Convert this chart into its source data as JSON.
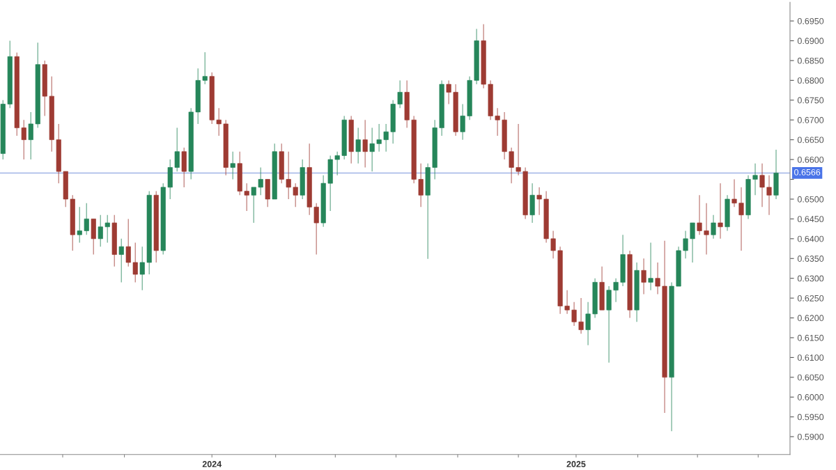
{
  "chart_data": {
    "type": "candlestick",
    "x": [
      "2023-06-05",
      "2023-06-12",
      "2023-06-19",
      "2023-06-26",
      "2023-07-03",
      "2023-07-10",
      "2023-07-17",
      "2023-07-24",
      "2023-07-31",
      "2023-08-07",
      "2023-08-14",
      "2023-08-21",
      "2023-08-28",
      "2023-09-04",
      "2023-09-11",
      "2023-09-18",
      "2023-09-25",
      "2023-10-02",
      "2023-10-09",
      "2023-10-16",
      "2023-10-23",
      "2023-10-30",
      "2023-11-06",
      "2023-11-13",
      "2023-11-20",
      "2023-11-27",
      "2023-12-04",
      "2023-12-11",
      "2023-12-18",
      "2023-12-25",
      "2024-01-01",
      "2024-01-08",
      "2024-01-15",
      "2024-01-22",
      "2024-01-29",
      "2024-02-05",
      "2024-02-12",
      "2024-02-19",
      "2024-02-26",
      "2024-03-04",
      "2024-03-11",
      "2024-03-18",
      "2024-03-25",
      "2024-04-01",
      "2024-04-08",
      "2024-04-15",
      "2024-04-22",
      "2024-04-29",
      "2024-05-06",
      "2024-05-13",
      "2024-05-20",
      "2024-05-27",
      "2024-06-03",
      "2024-06-10",
      "2024-06-17",
      "2024-06-24",
      "2024-07-01",
      "2024-07-08",
      "2024-07-15",
      "2024-07-22",
      "2024-07-29",
      "2024-08-05",
      "2024-08-12",
      "2024-08-19",
      "2024-08-26",
      "2024-09-02",
      "2024-09-09",
      "2024-09-16",
      "2024-09-23",
      "2024-09-30",
      "2024-10-07",
      "2024-10-14",
      "2024-10-21",
      "2024-10-28",
      "2024-11-04",
      "2024-11-11",
      "2024-11-18",
      "2024-11-25",
      "2024-12-02",
      "2024-12-09",
      "2024-12-16",
      "2024-12-23",
      "2024-12-30",
      "2025-01-06",
      "2025-01-13",
      "2025-01-20",
      "2025-01-27",
      "2025-02-03",
      "2025-02-10",
      "2025-02-17",
      "2025-02-24",
      "2025-03-03",
      "2025-03-10",
      "2025-03-17",
      "2025-03-24",
      "2025-03-31",
      "2025-04-07",
      "2025-04-14",
      "2025-04-21",
      "2025-04-28",
      "2025-05-05",
      "2025-05-12",
      "2025-05-19",
      "2025-05-26",
      "2025-06-02",
      "2025-06-09",
      "2025-06-16",
      "2025-06-23",
      "2025-06-30",
      "2025-07-07",
      "2025-07-14",
      "2025-07-21"
    ],
    "ohlc": [
      [
        0.6615,
        0.675,
        0.66,
        0.674
      ],
      [
        0.674,
        0.69,
        0.673,
        0.686
      ],
      [
        0.686,
        0.687,
        0.666,
        0.668
      ],
      [
        0.668,
        0.67,
        0.66,
        0.665
      ],
      [
        0.665,
        0.672,
        0.66,
        0.669
      ],
      [
        0.669,
        0.6895,
        0.668,
        0.684
      ],
      [
        0.684,
        0.685,
        0.671,
        0.676
      ],
      [
        0.676,
        0.681,
        0.662,
        0.665
      ],
      [
        0.665,
        0.669,
        0.654,
        0.657
      ],
      [
        0.657,
        0.657,
        0.648,
        0.65
      ],
      [
        0.65,
        0.651,
        0.637,
        0.641
      ],
      [
        0.641,
        0.648,
        0.639,
        0.642
      ],
      [
        0.642,
        0.649,
        0.641,
        0.645
      ],
      [
        0.645,
        0.645,
        0.636,
        0.64
      ],
      [
        0.64,
        0.646,
        0.638,
        0.643
      ],
      [
        0.643,
        0.646,
        0.639,
        0.644
      ],
      [
        0.644,
        0.646,
        0.633,
        0.636
      ],
      [
        0.636,
        0.64,
        0.629,
        0.638
      ],
      [
        0.638,
        0.645,
        0.633,
        0.634
      ],
      [
        0.634,
        0.639,
        0.629,
        0.631
      ],
      [
        0.631,
        0.638,
        0.627,
        0.634
      ],
      [
        0.634,
        0.652,
        0.631,
        0.651
      ],
      [
        0.651,
        0.652,
        0.634,
        0.637
      ],
      [
        0.637,
        0.654,
        0.636,
        0.653
      ],
      [
        0.653,
        0.66,
        0.65,
        0.658
      ],
      [
        0.658,
        0.668,
        0.657,
        0.662
      ],
      [
        0.662,
        0.663,
        0.653,
        0.657
      ],
      [
        0.657,
        0.673,
        0.655,
        0.672
      ],
      [
        0.672,
        0.683,
        0.669,
        0.68
      ],
      [
        0.68,
        0.6871,
        0.679,
        0.681
      ],
      [
        0.681,
        0.682,
        0.669,
        0.67
      ],
      [
        0.67,
        0.673,
        0.666,
        0.669
      ],
      [
        0.669,
        0.67,
        0.656,
        0.658
      ],
      [
        0.658,
        0.662,
        0.655,
        0.659
      ],
      [
        0.659,
        0.662,
        0.651,
        0.652
      ],
      [
        0.652,
        0.654,
        0.647,
        0.651
      ],
      [
        0.651,
        0.653,
        0.644,
        0.653
      ],
      [
        0.653,
        0.658,
        0.651,
        0.655
      ],
      [
        0.655,
        0.655,
        0.648,
        0.65
      ],
      [
        0.65,
        0.664,
        0.65,
        0.662
      ],
      [
        0.662,
        0.664,
        0.654,
        0.655
      ],
      [
        0.655,
        0.662,
        0.65,
        0.653
      ],
      [
        0.653,
        0.654,
        0.648,
        0.651
      ],
      [
        0.651,
        0.66,
        0.65,
        0.658
      ],
      [
        0.658,
        0.664,
        0.646,
        0.648
      ],
      [
        0.648,
        0.649,
        0.636,
        0.644
      ],
      [
        0.644,
        0.656,
        0.643,
        0.654
      ],
      [
        0.654,
        0.661,
        0.647,
        0.66
      ],
      [
        0.66,
        0.662,
        0.656,
        0.661
      ],
      [
        0.661,
        0.671,
        0.66,
        0.67
      ],
      [
        0.67,
        0.671,
        0.659,
        0.662
      ],
      [
        0.662,
        0.668,
        0.659,
        0.665
      ],
      [
        0.665,
        0.67,
        0.658,
        0.662
      ],
      [
        0.662,
        0.668,
        0.657,
        0.664
      ],
      [
        0.664,
        0.669,
        0.662,
        0.665
      ],
      [
        0.665,
        0.669,
        0.662,
        0.667
      ],
      [
        0.667,
        0.675,
        0.664,
        0.674
      ],
      [
        0.674,
        0.68,
        0.673,
        0.677
      ],
      [
        0.677,
        0.68,
        0.668,
        0.67
      ],
      [
        0.67,
        0.671,
        0.654,
        0.655
      ],
      [
        0.655,
        0.659,
        0.648,
        0.651
      ],
      [
        0.651,
        0.659,
        0.6349,
        0.658
      ],
      [
        0.658,
        0.67,
        0.655,
        0.668
      ],
      [
        0.668,
        0.68,
        0.666,
        0.679
      ],
      [
        0.679,
        0.68,
        0.674,
        0.677
      ],
      [
        0.677,
        0.679,
        0.666,
        0.667
      ],
      [
        0.667,
        0.674,
        0.665,
        0.671
      ],
      [
        0.671,
        0.681,
        0.67,
        0.68
      ],
      [
        0.68,
        0.693,
        0.679,
        0.69
      ],
      [
        0.69,
        0.6942,
        0.678,
        0.679
      ],
      [
        0.679,
        0.68,
        0.67,
        0.671
      ],
      [
        0.671,
        0.673,
        0.666,
        0.67
      ],
      [
        0.67,
        0.672,
        0.66,
        0.662
      ],
      [
        0.662,
        0.663,
        0.654,
        0.658
      ],
      [
        0.658,
        0.669,
        0.656,
        0.657
      ],
      [
        0.657,
        0.658,
        0.645,
        0.646
      ],
      [
        0.646,
        0.654,
        0.644,
        0.651
      ],
      [
        0.651,
        0.653,
        0.646,
        0.65
      ],
      [
        0.65,
        0.652,
        0.639,
        0.64
      ],
      [
        0.64,
        0.642,
        0.635,
        0.637
      ],
      [
        0.637,
        0.638,
        0.621,
        0.623
      ],
      [
        0.623,
        0.627,
        0.621,
        0.622
      ],
      [
        0.622,
        0.624,
        0.618,
        0.619
      ],
      [
        0.619,
        0.625,
        0.616,
        0.617
      ],
      [
        0.617,
        0.624,
        0.6131,
        0.621
      ],
      [
        0.621,
        0.63,
        0.62,
        0.629
      ],
      [
        0.629,
        0.633,
        0.622,
        0.622
      ],
      [
        0.622,
        0.628,
        0.6087,
        0.627
      ],
      [
        0.627,
        0.63,
        0.624,
        0.629
      ],
      [
        0.629,
        0.641,
        0.628,
        0.636
      ],
      [
        0.636,
        0.637,
        0.62,
        0.622
      ],
      [
        0.622,
        0.634,
        0.619,
        0.632
      ],
      [
        0.632,
        0.635,
        0.626,
        0.629
      ],
      [
        0.629,
        0.639,
        0.627,
        0.63
      ],
      [
        0.63,
        0.634,
        0.626,
        0.628
      ],
      [
        0.628,
        0.6395,
        0.596,
        0.605
      ],
      [
        0.605,
        0.629,
        0.5914,
        0.628
      ],
      [
        0.628,
        0.638,
        0.628,
        0.637
      ],
      [
        0.637,
        0.642,
        0.635,
        0.64
      ],
      [
        0.64,
        0.644,
        0.634,
        0.644
      ],
      [
        0.644,
        0.651,
        0.641,
        0.642
      ],
      [
        0.642,
        0.649,
        0.636,
        0.641
      ],
      [
        0.641,
        0.646,
        0.64,
        0.644
      ],
      [
        0.644,
        0.654,
        0.64,
        0.643
      ],
      [
        0.643,
        0.651,
        0.642,
        0.65
      ],
      [
        0.65,
        0.655,
        0.648,
        0.649
      ],
      [
        0.649,
        0.653,
        0.637,
        0.646
      ],
      [
        0.646,
        0.656,
        0.645,
        0.655
      ],
      [
        0.655,
        0.659,
        0.651,
        0.656
      ],
      [
        0.656,
        0.659,
        0.648,
        0.653
      ],
      [
        0.653,
        0.656,
        0.646,
        0.651
      ],
      [
        0.651,
        0.6625,
        0.65,
        0.6566
      ]
    ],
    "colors": [
      "#26865a",
      "#26865a",
      "#9e3b33",
      "#9e3b33",
      "#26865a",
      "#26865a",
      "#9e3b33",
      "#9e3b33",
      "#9e3b33",
      "#9e3b33",
      "#9e3b33",
      "#26865a",
      "#26865a",
      "#9e3b33",
      "#26865a",
      "#26865a",
      "#9e3b33",
      "#26865a",
      "#9e3b33",
      "#9e3b33",
      "#26865a",
      "#26865a",
      "#9e3b33",
      "#26865a",
      "#26865a",
      "#26865a",
      "#9e3b33",
      "#26865a",
      "#26865a",
      "#26865a",
      "#9e3b33",
      "#9e3b33",
      "#9e3b33",
      "#26865a",
      "#9e3b33",
      "#9e3b33",
      "#26865a",
      "#26865a",
      "#9e3b33",
      "#26865a",
      "#9e3b33",
      "#9e3b33",
      "#9e3b33",
      "#26865a",
      "#9e3b33",
      "#9e3b33",
      "#26865a",
      "#26865a",
      "#26865a",
      "#26865a",
      "#9e3b33",
      "#26865a",
      "#9e3b33",
      "#26865a",
      "#26865a",
      "#26865a",
      "#26865a",
      "#26865a",
      "#9e3b33",
      "#9e3b33",
      "#9e3b33",
      "#26865a",
      "#26865a",
      "#26865a",
      "#9e3b33",
      "#9e3b33",
      "#26865a",
      "#26865a",
      "#26865a",
      "#9e3b33",
      "#9e3b33",
      "#9e3b33",
      "#9e3b33",
      "#9e3b33",
      "#9e3b33",
      "#9e3b33",
      "#26865a",
      "#9e3b33",
      "#9e3b33",
      "#9e3b33",
      "#9e3b33",
      "#9e3b33",
      "#9e3b33",
      "#9e3b33",
      "#26865a",
      "#26865a",
      "#9e3b33",
      "#26865a",
      "#26865a",
      "#26865a",
      "#9e3b33",
      "#26865a",
      "#9e3b33",
      "#26865a",
      "#9e3b33",
      "#9e3b33",
      "#26865a",
      "#26865a",
      "#26865a",
      "#26865a",
      "#9e3b33",
      "#9e3b33",
      "#26865a",
      "#9e3b33",
      "#26865a",
      "#9e3b33",
      "#9e3b33",
      "#26865a",
      "#26865a",
      "#9e3b33",
      "#9e3b33",
      "#26865a"
    ],
    "xlim": [
      "2023-06-02",
      "2025-08-04"
    ],
    "xticks": [
      {
        "value": "2023-08-04",
        "label": null
      },
      {
        "value": "2023-10-05",
        "label": null
      },
      {
        "value": "2024-01-01",
        "label": "2024"
      },
      {
        "value": "2024-03-05",
        "label": null
      },
      {
        "value": "2024-05-04",
        "label": null
      },
      {
        "value": "2024-07-04",
        "label": null
      },
      {
        "value": "2024-09-04",
        "label": null
      },
      {
        "value": "2024-11-04",
        "label": null
      },
      {
        "value": "2025-01-01",
        "label": "2025"
      },
      {
        "value": "2025-03-04",
        "label": null
      },
      {
        "value": "2025-05-03",
        "label": null
      },
      {
        "value": "2025-07-03",
        "label": null
      }
    ],
    "ylim": [
      0.5855,
      0.6997
    ],
    "yticks": [
      {
        "value": 0.59,
        "label": "0.5900"
      },
      {
        "value": 0.595,
        "label": "0.5950"
      },
      {
        "value": 0.6,
        "label": "0.6000"
      },
      {
        "value": 0.605,
        "label": "0.6050"
      },
      {
        "value": 0.61,
        "label": "0.6100"
      },
      {
        "value": 0.615,
        "label": "0.6150"
      },
      {
        "value": 0.62,
        "label": "0.6200"
      },
      {
        "value": 0.625,
        "label": "0.6250"
      },
      {
        "value": 0.63,
        "label": "0.6300"
      },
      {
        "value": 0.635,
        "label": "0.6350"
      },
      {
        "value": 0.64,
        "label": "0.6400"
      },
      {
        "value": 0.645,
        "label": "0.6450"
      },
      {
        "value": 0.65,
        "label": "0.6500"
      },
      {
        "value": 0.655,
        "label": null
      },
      {
        "value": 0.66,
        "label": "0.6600"
      },
      {
        "value": 0.665,
        "label": "0.6650"
      },
      {
        "value": 0.67,
        "label": "0.6700"
      },
      {
        "value": 0.675,
        "label": "0.6750"
      },
      {
        "value": 0.68,
        "label": "0.6800"
      },
      {
        "value": 0.685,
        "label": "0.6850"
      },
      {
        "value": 0.69,
        "label": "0.6900"
      },
      {
        "value": 0.695,
        "label": "0.6950"
      }
    ],
    "ref_lines": [
      {
        "axis": "y",
        "value": 0.6566,
        "label": "0.6566",
        "color": "#9fb4e6"
      }
    ],
    "grid": false
  }
}
